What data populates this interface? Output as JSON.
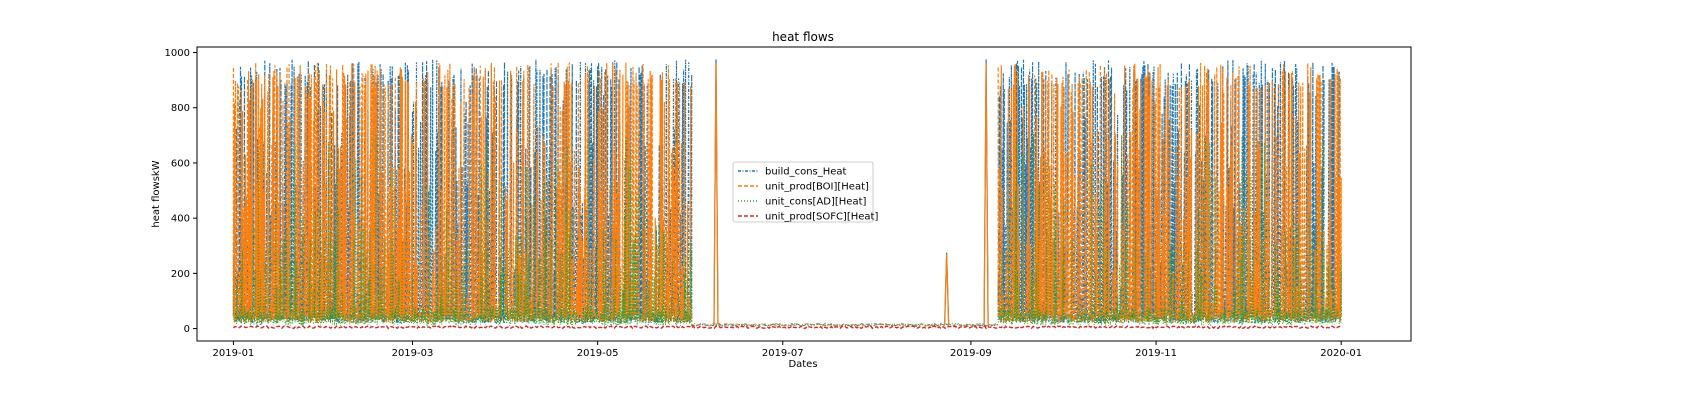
{
  "chart_data": {
    "type": "line",
    "title": "heat flows",
    "xlabel": "Dates",
    "ylabel": "heat flowskW",
    "x_range": [
      "2018-12-20",
      "2020-01-24"
    ],
    "ylim": [
      -45,
      1020
    ],
    "x_ticks": [
      "2019-01",
      "2019-03",
      "2019-05",
      "2019-07",
      "2019-09",
      "2019-11",
      "2020-01"
    ],
    "y_ticks": [
      0,
      200,
      400,
      600,
      800,
      1000
    ],
    "grid": false,
    "legend_position": "center",
    "series": [
      {
        "name": "build_cons_Heat",
        "color": "#1f77b4",
        "style": "dash-dot",
        "max": 975,
        "dense_ranges": [
          [
            "2019-01-01",
            "2019-06-01"
          ],
          [
            "2019-09-10",
            "2020-01-01"
          ]
        ],
        "spikes": [
          {
            "date": "2019-06-09",
            "value": 975
          },
          {
            "date": "2019-09-06",
            "value": 975
          },
          {
            "date": "2019-08-24",
            "value": 275
          }
        ]
      },
      {
        "name": "unit_prod[BOI][Heat]",
        "color": "#ff7f0e",
        "style": "dashed",
        "max": 965,
        "dense_ranges": [
          [
            "2019-01-01",
            "2019-06-01"
          ],
          [
            "2019-09-10",
            "2020-01-01"
          ]
        ],
        "spikes": [
          {
            "date": "2019-06-09",
            "value": 960
          },
          {
            "date": "2019-09-06",
            "value": 960
          },
          {
            "date": "2019-08-24",
            "value": 270
          }
        ]
      },
      {
        "name": "unit_cons[AD][Heat]",
        "color": "#2ca02c",
        "style": "dotted",
        "max": 720,
        "dense_ranges": [
          [
            "2019-01-01",
            "2019-06-01"
          ],
          [
            "2019-09-10",
            "2020-01-01"
          ]
        ]
      },
      {
        "name": "unit_prod[SOFC][Heat]",
        "color": "#d62728",
        "style": "dashed",
        "level": 5
      }
    ]
  }
}
